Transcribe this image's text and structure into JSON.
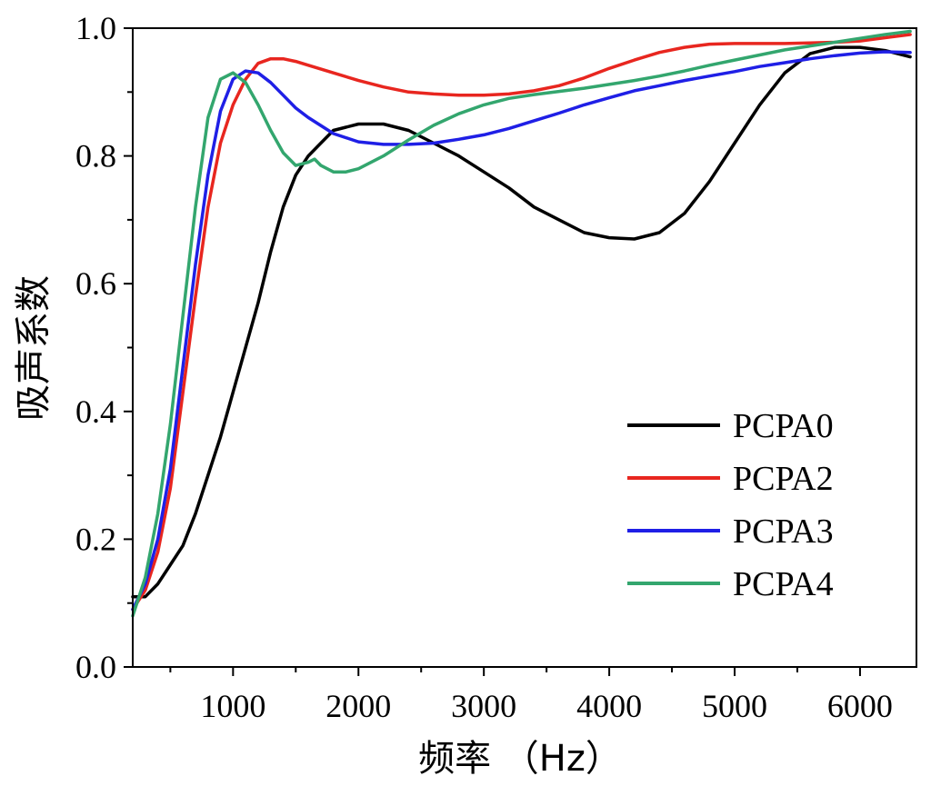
{
  "chart_data": {
    "type": "line",
    "xlabel": "频率 （Hz）",
    "ylabel": "吸声系数",
    "xlim": [
      200,
      6450
    ],
    "ylim": [
      0,
      1.0
    ],
    "x_ticks": [
      1000,
      2000,
      3000,
      4000,
      5000,
      6000
    ],
    "x_tick_labels": [
      "1000",
      "2000",
      "3000",
      "4000",
      "5000",
      "6000"
    ],
    "y_ticks": [
      0,
      0.2,
      0.4,
      0.6,
      0.8,
      1.0
    ],
    "y_tick_labels": [
      "0.0",
      "0.2",
      "0.4",
      "0.6",
      "0.8",
      "1.0"
    ],
    "grid": false,
    "legend_position": "bottom-right",
    "series": [
      {
        "name": "PCPA0",
        "color": "#000000",
        "x": [
          200,
          300,
          400,
          500,
          600,
          700,
          800,
          900,
          1000,
          1100,
          1200,
          1300,
          1400,
          1500,
          1600,
          1700,
          1800,
          1900,
          2000,
          2200,
          2400,
          2600,
          2800,
          3000,
          3200,
          3400,
          3600,
          3800,
          4000,
          4200,
          4400,
          4600,
          4800,
          5000,
          5200,
          5400,
          5600,
          5800,
          6000,
          6200,
          6400
        ],
        "y": [
          0.11,
          0.11,
          0.13,
          0.16,
          0.19,
          0.24,
          0.3,
          0.36,
          0.43,
          0.5,
          0.57,
          0.65,
          0.72,
          0.77,
          0.8,
          0.82,
          0.84,
          0.845,
          0.85,
          0.85,
          0.84,
          0.82,
          0.8,
          0.775,
          0.75,
          0.72,
          0.7,
          0.68,
          0.672,
          0.67,
          0.68,
          0.71,
          0.76,
          0.82,
          0.88,
          0.93,
          0.96,
          0.97,
          0.97,
          0.965,
          0.955
        ]
      },
      {
        "name": "PCPA2",
        "color": "#e8261f",
        "x": [
          200,
          300,
          400,
          500,
          600,
          700,
          800,
          900,
          1000,
          1100,
          1200,
          1300,
          1400,
          1500,
          1600,
          1800,
          2000,
          2200,
          2400,
          2600,
          2800,
          3000,
          3200,
          3400,
          3600,
          3800,
          4000,
          4200,
          4400,
          4600,
          4800,
          5000,
          5200,
          5400,
          5600,
          5800,
          6000,
          6200,
          6400
        ],
        "y": [
          0.09,
          0.12,
          0.18,
          0.28,
          0.43,
          0.58,
          0.72,
          0.82,
          0.88,
          0.92,
          0.945,
          0.952,
          0.952,
          0.948,
          0.942,
          0.93,
          0.918,
          0.908,
          0.9,
          0.897,
          0.895,
          0.895,
          0.897,
          0.902,
          0.91,
          0.922,
          0.937,
          0.95,
          0.962,
          0.97,
          0.975,
          0.976,
          0.976,
          0.976,
          0.977,
          0.978,
          0.98,
          0.985,
          0.99
        ]
      },
      {
        "name": "PCPA3",
        "color": "#1f1fe6",
        "x": [
          200,
          300,
          400,
          500,
          600,
          700,
          800,
          900,
          1000,
          1100,
          1200,
          1300,
          1400,
          1500,
          1600,
          1800,
          2000,
          2200,
          2400,
          2600,
          2800,
          3000,
          3200,
          3400,
          3600,
          3800,
          4000,
          4200,
          4400,
          4600,
          4800,
          5000,
          5200,
          5400,
          5600,
          5800,
          6000,
          6200,
          6400
        ],
        "y": [
          0.09,
          0.13,
          0.2,
          0.31,
          0.47,
          0.63,
          0.77,
          0.87,
          0.92,
          0.933,
          0.93,
          0.915,
          0.895,
          0.875,
          0.86,
          0.835,
          0.822,
          0.818,
          0.818,
          0.82,
          0.826,
          0.833,
          0.843,
          0.855,
          0.867,
          0.88,
          0.891,
          0.902,
          0.91,
          0.918,
          0.925,
          0.932,
          0.94,
          0.946,
          0.952,
          0.957,
          0.961,
          0.963,
          0.962
        ]
      },
      {
        "name": "PCPA4",
        "color": "#33a66e",
        "x": [
          200,
          300,
          400,
          500,
          600,
          700,
          800,
          900,
          1000,
          1100,
          1200,
          1300,
          1400,
          1500,
          1600,
          1650,
          1700,
          1800,
          1900,
          2000,
          2200,
          2400,
          2600,
          2800,
          3000,
          3200,
          3400,
          3600,
          3800,
          4000,
          4200,
          4400,
          4600,
          4800,
          5000,
          5200,
          5400,
          5600,
          5800,
          6000,
          6200,
          6400
        ],
        "y": [
          0.08,
          0.14,
          0.24,
          0.38,
          0.55,
          0.72,
          0.86,
          0.92,
          0.93,
          0.915,
          0.88,
          0.84,
          0.805,
          0.785,
          0.79,
          0.795,
          0.785,
          0.775,
          0.775,
          0.78,
          0.8,
          0.825,
          0.848,
          0.866,
          0.88,
          0.89,
          0.896,
          0.901,
          0.906,
          0.912,
          0.918,
          0.925,
          0.933,
          0.942,
          0.95,
          0.958,
          0.966,
          0.972,
          0.978,
          0.984,
          0.99,
          0.995
        ]
      }
    ]
  }
}
